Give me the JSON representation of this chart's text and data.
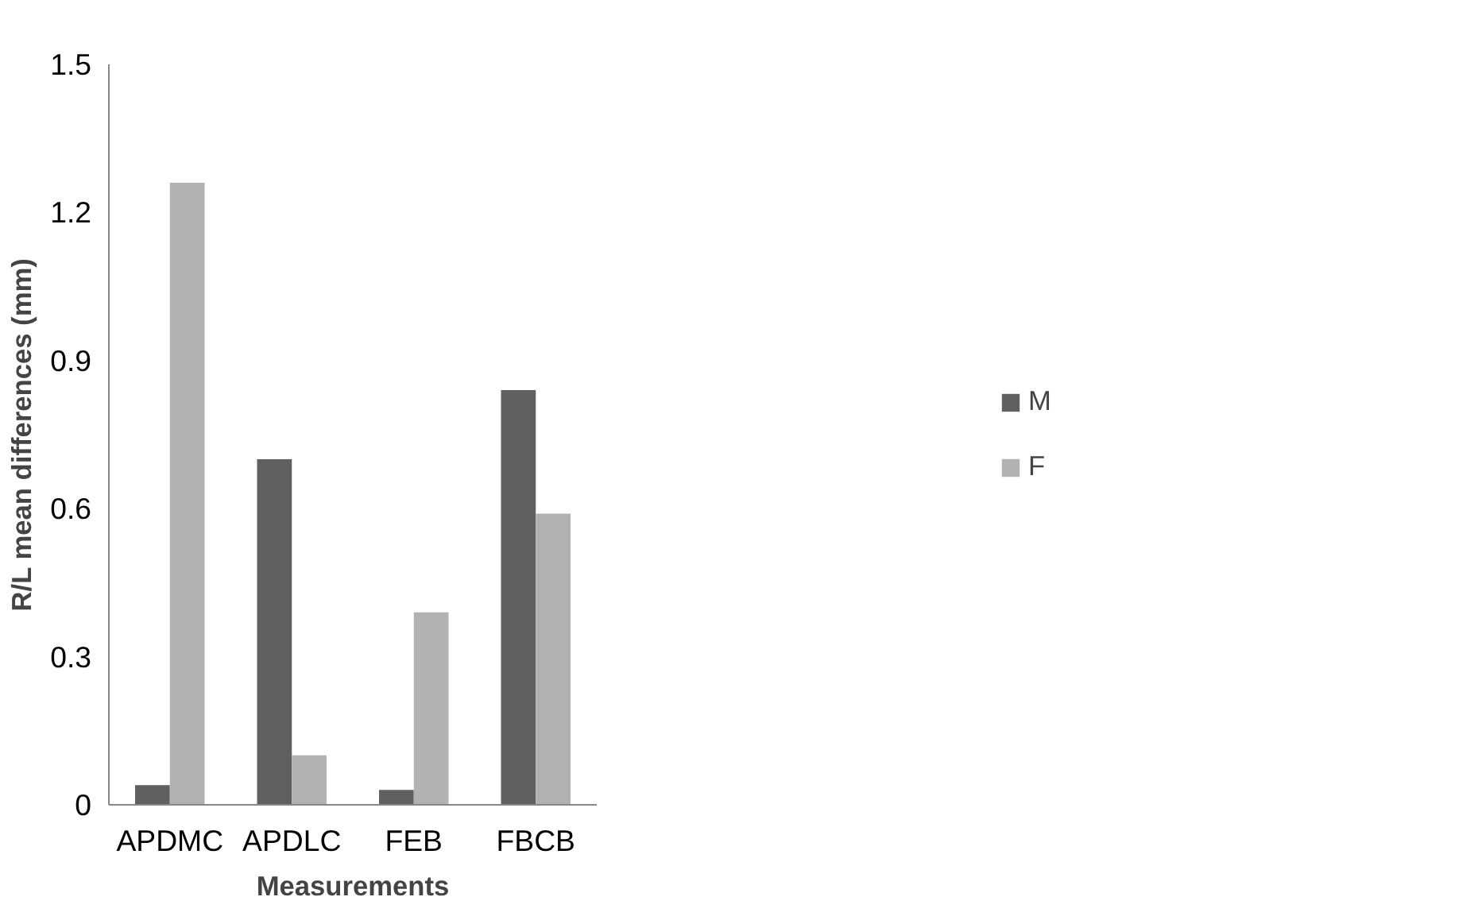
{
  "chart_data": {
    "type": "bar",
    "xlabel": "Measurements",
    "ylabel": "R/L mean differences (mm)",
    "categories": [
      "APDMC",
      "APDLC",
      "FEB",
      "FBCB"
    ],
    "series": [
      {
        "name": "M",
        "color": "#606060",
        "values": [
          0.04,
          0.7,
          0.03,
          0.84
        ]
      },
      {
        "name": "F",
        "color": "#b2b2b2",
        "values": [
          1.26,
          0.1,
          0.39,
          0.59
        ]
      }
    ],
    "ylim": [
      0,
      1.5
    ],
    "yticks": [
      0,
      0.3,
      0.6,
      0.9,
      1.2,
      1.5
    ],
    "grid": false,
    "legend": "right"
  }
}
